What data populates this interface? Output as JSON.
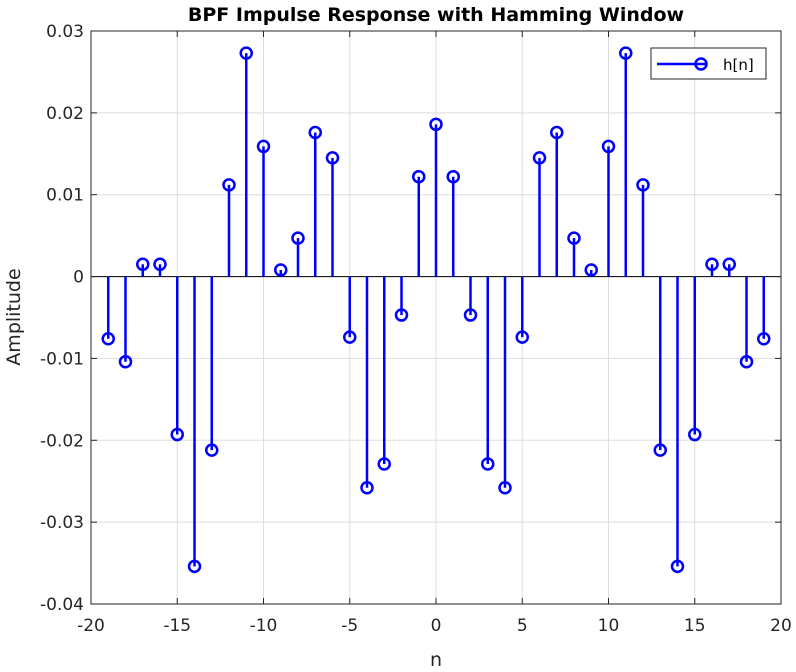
{
  "chart_data": {
    "type": "stem",
    "title": "BPF Impulse Response with Hamming Window",
    "xlabel": "n",
    "ylabel": "Amplitude",
    "xlim": [
      -20,
      20
    ],
    "ylim": [
      -0.04,
      0.03
    ],
    "xticks": [
      -20,
      -15,
      -10,
      -5,
      0,
      5,
      10,
      15,
      20
    ],
    "xtick_labels": [
      "-20",
      "-15",
      "-10",
      "-5",
      "0",
      "5",
      "10",
      "15",
      "20"
    ],
    "yticks": [
      -0.04,
      -0.03,
      -0.02,
      -0.01,
      0,
      0.01,
      0.02,
      0.03
    ],
    "ytick_labels": [
      "-0.04",
      "-0.03",
      "-0.02",
      "-0.01",
      "0",
      "0.01",
      "0.02",
      "0.03"
    ],
    "grid": true,
    "legend_position": "top-right",
    "series": [
      {
        "name": "h[n]",
        "color": "#0000ff",
        "marker": "circle",
        "x": [
          -19,
          -18,
          -17,
          -16,
          -15,
          -14,
          -13,
          -12,
          -11,
          -10,
          -9,
          -8,
          -7,
          -6,
          -5,
          -4,
          -3,
          -2,
          -1,
          0,
          1,
          2,
          3,
          4,
          5,
          6,
          7,
          8,
          9,
          10,
          11,
          12,
          13,
          14,
          15,
          16,
          17,
          18,
          19
        ],
        "values": [
          -0.0076,
          -0.0104,
          0.0015,
          0.0015,
          -0.0193,
          -0.0354,
          -0.0212,
          0.0112,
          0.0273,
          0.0159,
          0.0008,
          0.0047,
          0.0176,
          0.0145,
          -0.0074,
          -0.0258,
          -0.0229,
          -0.0047,
          0.0122,
          0.0186,
          0.0122,
          -0.0047,
          -0.0229,
          -0.0258,
          -0.0074,
          0.0145,
          0.0176,
          0.0047,
          0.0008,
          0.0159,
          0.0273,
          0.0112,
          -0.0212,
          -0.0354,
          -0.0193,
          0.0015,
          0.0015,
          -0.0104,
          -0.0076
        ]
      }
    ]
  }
}
